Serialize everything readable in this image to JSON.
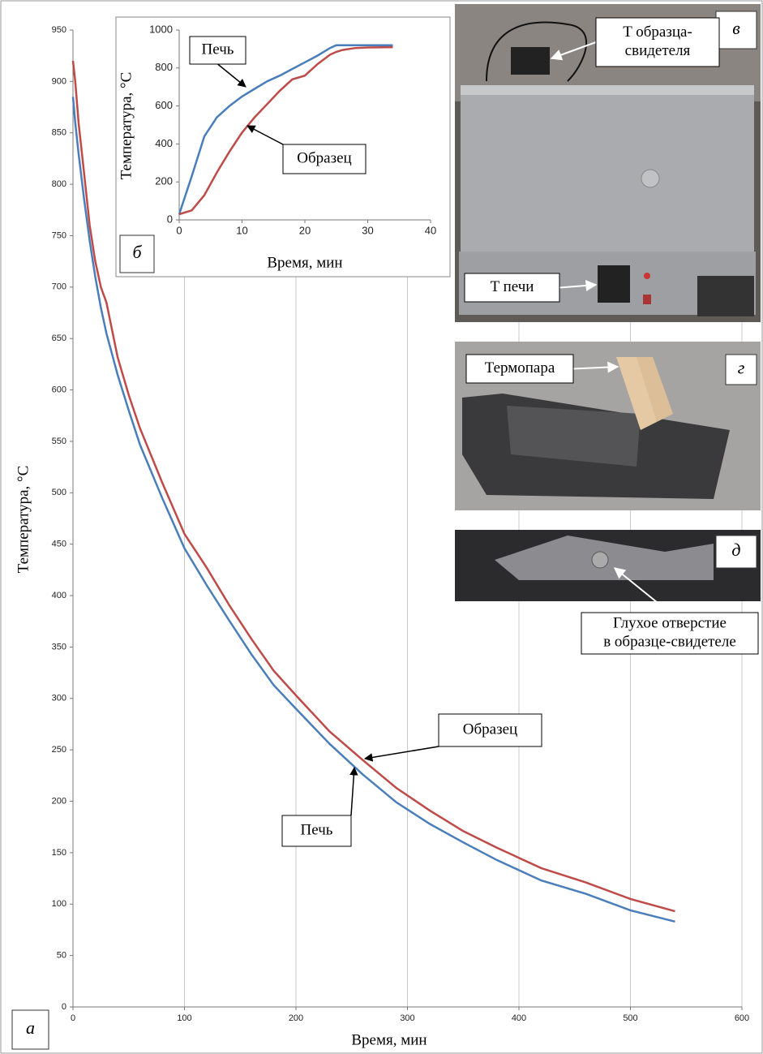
{
  "chart_data": [
    {
      "type": "line",
      "x_label": "Время, мин",
      "y_label": "Температура, °C",
      "panel": "а",
      "xlim": [
        0,
        600
      ],
      "xticks": [
        0,
        100,
        200,
        300,
        400,
        500,
        600
      ],
      "ylim": [
        0,
        950
      ],
      "yticks": [
        0,
        50,
        100,
        150,
        200,
        250,
        300,
        350,
        400,
        450,
        500,
        550,
        600,
        650,
        700,
        750,
        800,
        850,
        900,
        950
      ],
      "grid": "x",
      "x": [
        0,
        2,
        5,
        10,
        15,
        20,
        25,
        30,
        40,
        50,
        60,
        80,
        100,
        120,
        140,
        160,
        180,
        200,
        230,
        260,
        290,
        320,
        350,
        380,
        420,
        460,
        500,
        540
      ],
      "series": [
        {
          "name": "Печь",
          "color": "#4a7ebb",
          "values": [
            885,
            860,
            830,
            785,
            745,
            710,
            680,
            655,
            615,
            580,
            547,
            495,
            446,
            410,
            376,
            343,
            313,
            290,
            256,
            226,
            199,
            178,
            160,
            143,
            123,
            110,
            94,
            83
          ]
        },
        {
          "name": "Образец",
          "color": "#be4b48",
          "values": [
            920,
            900,
            860,
            810,
            760,
            725,
            700,
            685,
            632,
            595,
            563,
            510,
            460,
            427,
            391,
            358,
            327,
            303,
            268,
            240,
            213,
            191,
            171,
            155,
            135,
            121,
            105,
            93
          ]
        }
      ],
      "annotations": [
        {
          "text": "Образец"
        },
        {
          "text": "Печь"
        }
      ]
    },
    {
      "type": "line",
      "x_label": "Время, мин",
      "y_label": "Температура, °C",
      "panel": "б",
      "xlim": [
        0,
        40
      ],
      "xticks": [
        0,
        10,
        20,
        30,
        40
      ],
      "ylim": [
        0,
        1000
      ],
      "yticks": [
        0,
        200,
        400,
        600,
        800,
        1000
      ],
      "grid": false,
      "x": [
        0,
        2,
        4,
        6,
        8,
        10,
        12,
        14,
        16,
        18,
        20,
        22,
        24,
        25,
        26,
        28,
        30,
        34
      ],
      "series": [
        {
          "name": "Печь",
          "color": "#4a7ebb",
          "values": [
            30,
            230,
            440,
            540,
            600,
            650,
            690,
            730,
            760,
            795,
            830,
            865,
            905,
            920,
            920,
            920,
            920,
            920
          ]
        },
        {
          "name": "Образец",
          "color": "#be4b48",
          "values": [
            30,
            50,
            130,
            250,
            360,
            460,
            540,
            610,
            680,
            740,
            760,
            820,
            870,
            885,
            895,
            905,
            908,
            910
          ]
        }
      ],
      "annotations": [
        {
          "text": "Печь"
        },
        {
          "text": "Образец"
        }
      ]
    }
  ],
  "photos": [
    {
      "letter": "в",
      "labels": [
        {
          "lines": [
            "T образца-",
            "свидетеля"
          ]
        },
        {
          "lines": [
            "T печи"
          ]
        }
      ]
    },
    {
      "letter": "г",
      "labels": [
        {
          "lines": [
            "Термопара"
          ]
        }
      ]
    },
    {
      "letter": "д",
      "labels": [
        {
          "lines": [
            "Глухое отверстие",
            "в образце-свидетеле"
          ]
        }
      ]
    }
  ]
}
